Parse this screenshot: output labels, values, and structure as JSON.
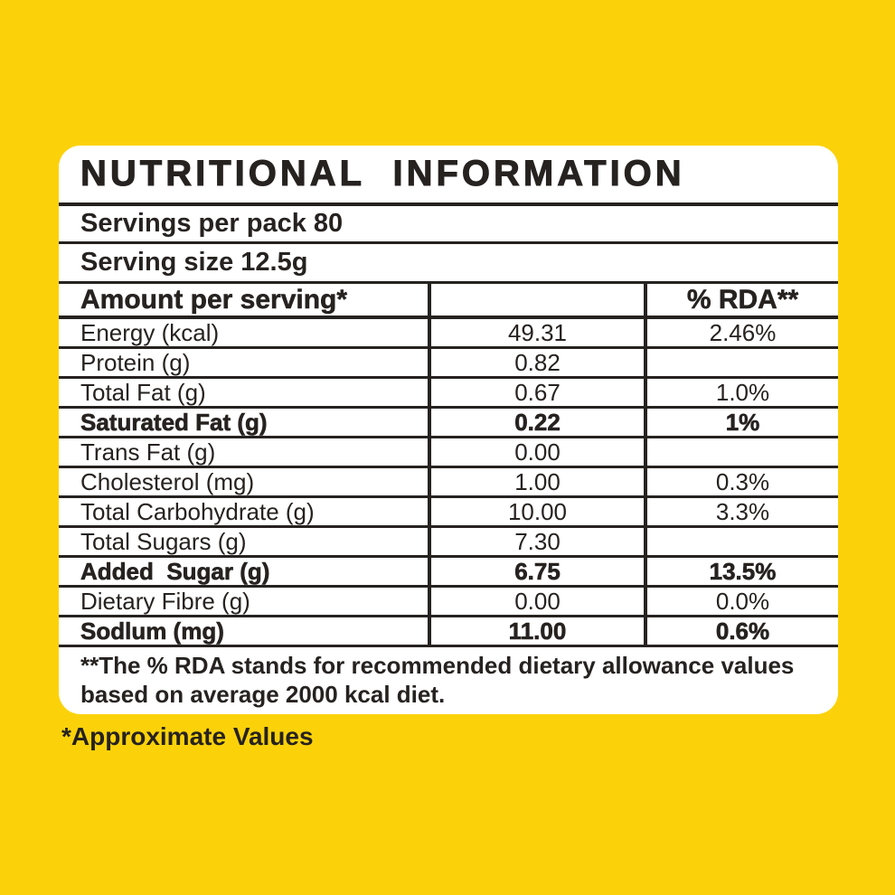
{
  "colors": {
    "background": "#FBD20A",
    "panel": "#FFFFFF",
    "text": "#262220"
  },
  "label": {
    "title": "NUTRITIONAL INFORMATION",
    "servings_line": "Servings per pack 80",
    "serving_size_line": "Serving size 12.5g",
    "footnote": "**The % RDA stands for recommended dietary allowance values based on average 2000 kcal diet.",
    "approximate_note": "*Approximate Values"
  },
  "table": {
    "header": {
      "amount_col": "Amount per serving*",
      "value_col": "",
      "rda_col": "% RDA**"
    },
    "rows": [
      {
        "label": "Energy (kcal)",
        "amount": "49.31",
        "rda": "2.46%",
        "emphasis": false
      },
      {
        "label": "Protein (g)",
        "amount": "0.82",
        "rda": "",
        "emphasis": false
      },
      {
        "label": "Total Fat (g)",
        "amount": "0.67",
        "rda": "1.0%",
        "emphasis": false
      },
      {
        "label": "Saturated Fat (g)",
        "amount": "0.22",
        "rda": "1%",
        "emphasis": true
      },
      {
        "label": "Trans Fat (g)",
        "amount": "0.00",
        "rda": "",
        "emphasis": false
      },
      {
        "label": "Cholesterol (mg)",
        "amount": "1.00",
        "rda": "0.3%",
        "emphasis": false
      },
      {
        "label": "Total Carbohydrate (g)",
        "amount": "10.00",
        "rda": "3.3%",
        "emphasis": false
      },
      {
        "label": "Total Sugars (g)",
        "amount": "7.30",
        "rda": "",
        "emphasis": false
      },
      {
        "label": "Added  Sugar (g)",
        "amount": "6.75",
        "rda": "13.5%",
        "emphasis": true
      },
      {
        "label": "Dietary Fibre (g)",
        "amount": "0.00",
        "rda": "0.0%",
        "emphasis": false
      },
      {
        "label": "Sodlum (mg)",
        "amount": "11.00",
        "rda": "0.6%",
        "emphasis": true
      }
    ]
  }
}
